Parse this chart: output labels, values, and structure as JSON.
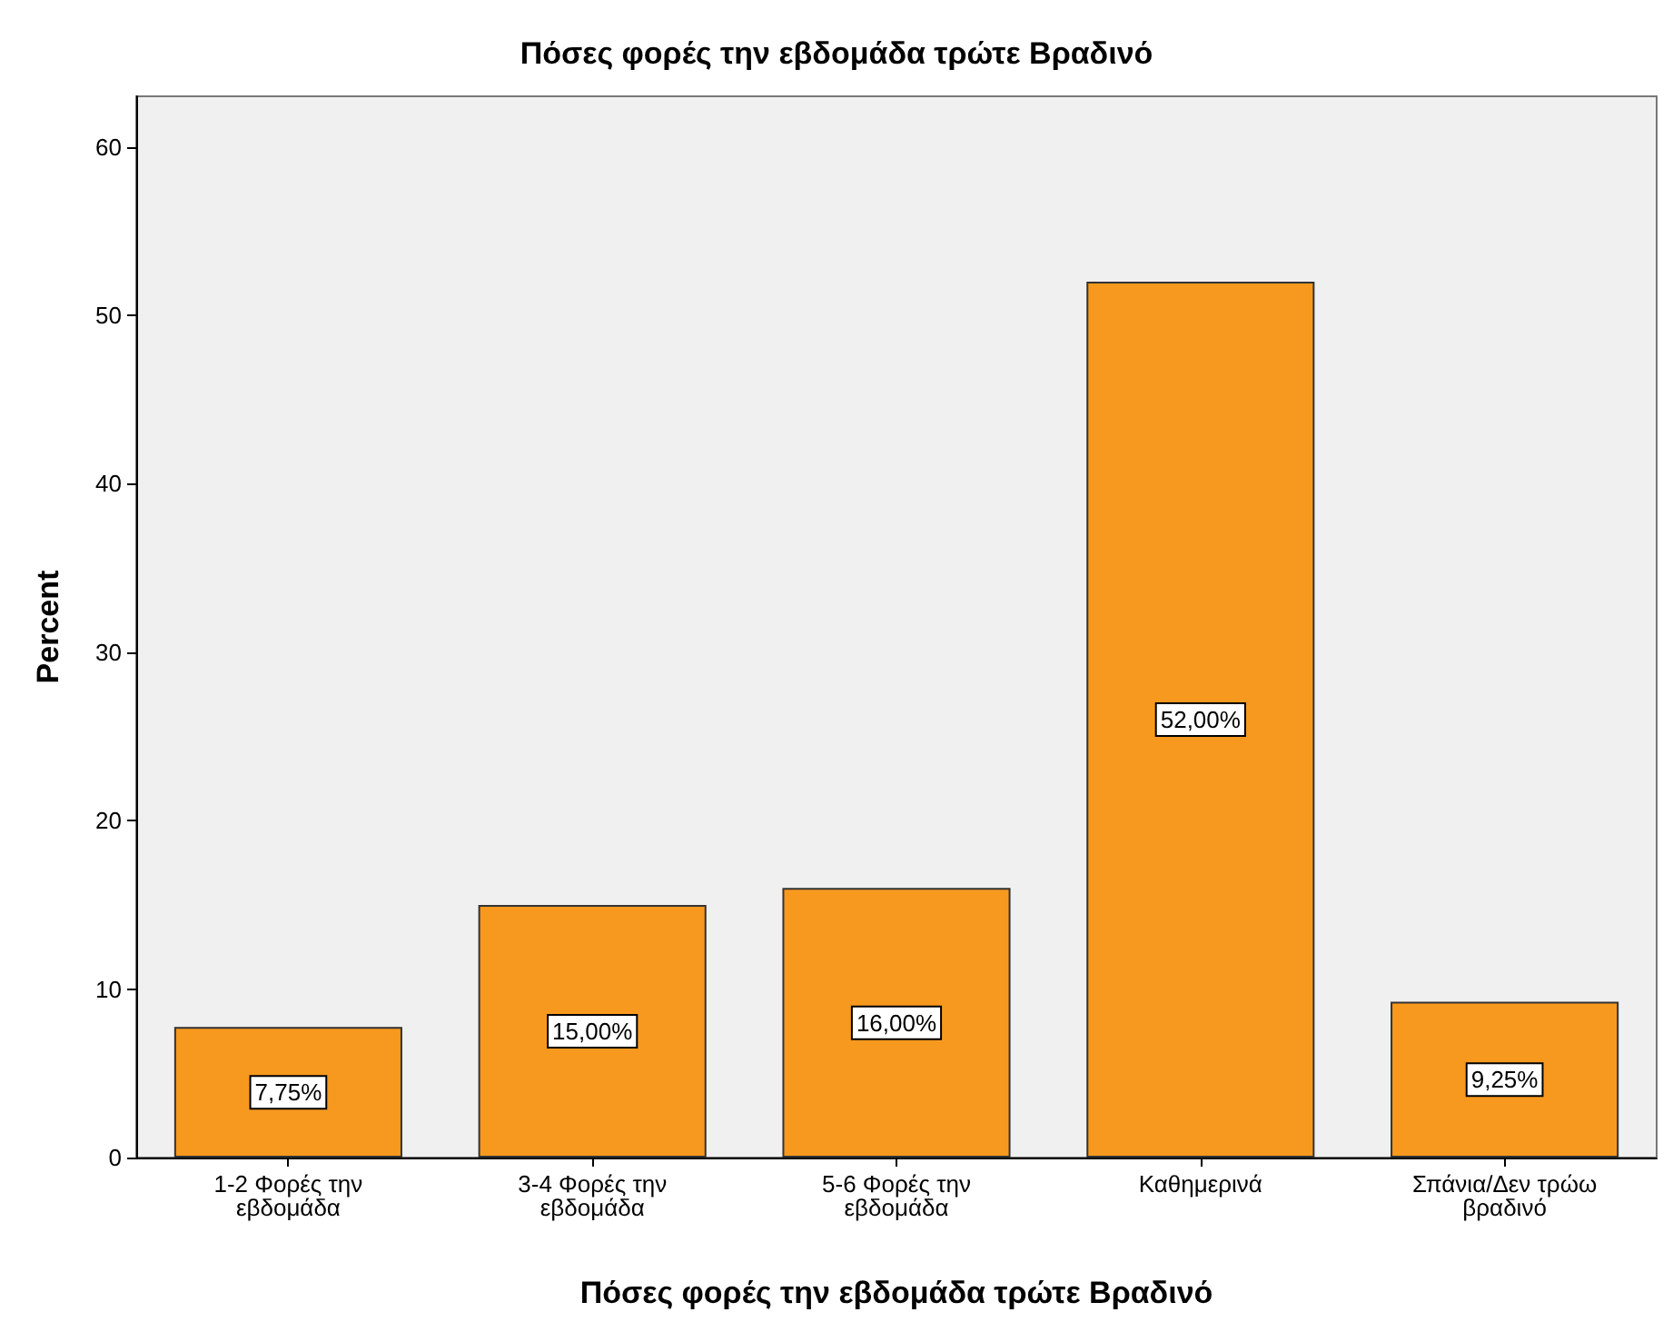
{
  "chart_data": {
    "type": "bar",
    "title": "Πόσες φορές την εβδομάδα τρώτε Βραδινό",
    "xlabel": "Πόσες φορές την εβδομάδα τρώτε Βραδινό",
    "ylabel": "Percent",
    "categories": [
      "1-2 Φορές την εβδομάδα",
      "3-4 Φορές την εβδομάδα",
      "5-6 Φορές την εβδομάδα",
      "Καθημερινά",
      "Σπάνια/Δεν τρώω βραδινό"
    ],
    "values": [
      7.75,
      15,
      16,
      52,
      9.25
    ],
    "value_labels": [
      "7,75%",
      "15,00%",
      "16,00%",
      "52,00%",
      "9,25%"
    ],
    "color": "#f7991f",
    "ylim": [
      0,
      63
    ],
    "yticks": [
      0,
      10,
      20,
      30,
      40,
      50,
      60
    ],
    "grid": false
  }
}
